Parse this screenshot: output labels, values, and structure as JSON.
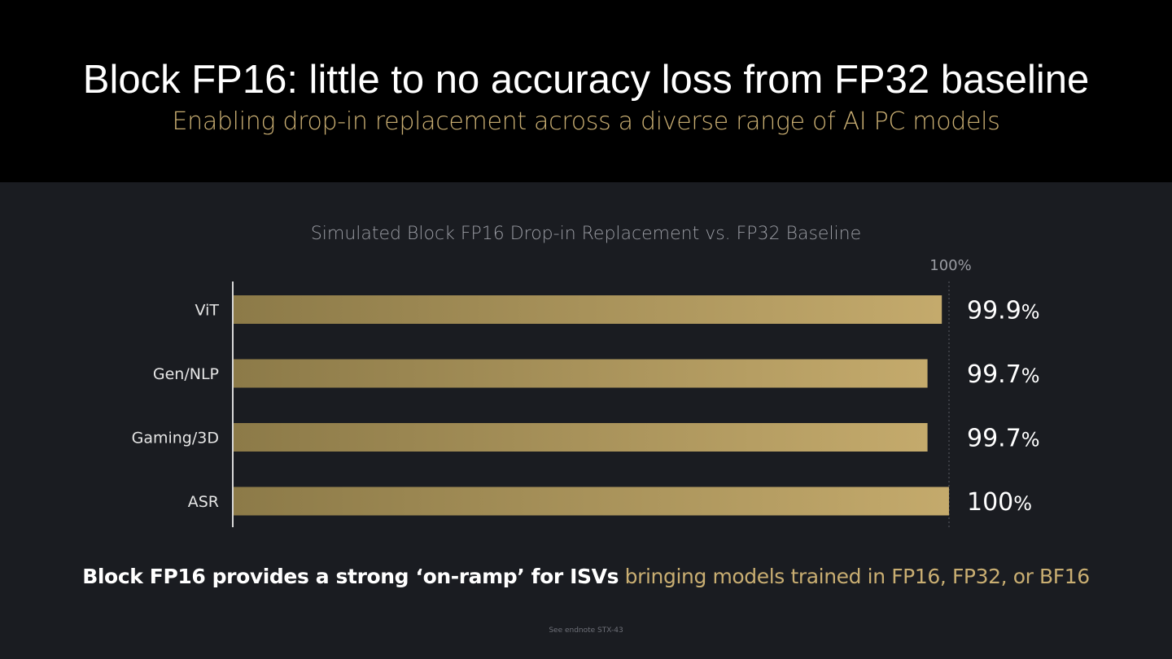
{
  "slide": {
    "title": "Block FP16: little to no accuracy loss from FP32 baseline",
    "subtitle": "Enabling drop-in replacement across a diverse range of AI PC models",
    "tagline_bold": "Block FP16 provides a strong ‘on-ramp’ for ISVs",
    "tagline_rest": "bringing models trained in FP16, FP32, or BF16",
    "footnote": "See endnote STX-43"
  },
  "colors": {
    "background": "#1a1c21",
    "header": "#000000",
    "accent_gold": "#c9ae72",
    "bar_start": "#8c7a48",
    "bar_end": "#c4aa6c"
  },
  "chart_data": {
    "type": "bar",
    "orientation": "horizontal",
    "title": "Simulated Block FP16 Drop-in Replacement vs. FP32 Baseline",
    "reference_label": "100%",
    "reference_value": 100,
    "categories": [
      "ViT",
      "Gen/NLP",
      "Gaming/3D",
      "ASR"
    ],
    "values": [
      99.9,
      99.7,
      99.7,
      100
    ],
    "value_labels": [
      "99.9",
      "99.7",
      "99.7",
      "100"
    ],
    "unit": "%",
    "xlim": [
      90,
      100
    ],
    "grid": false,
    "legend": "none"
  }
}
